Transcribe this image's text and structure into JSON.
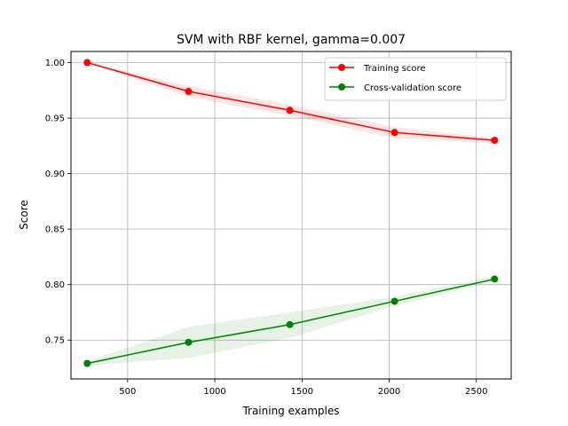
{
  "chart_data": {
    "type": "line",
    "title": "SVM with RBF kernel, gamma=0.007",
    "xlabel": "Training examples",
    "ylabel": "Score",
    "xlim": [
      175,
      2700
    ],
    "ylim": [
      0.715,
      1.01
    ],
    "x_ticks": [
      500,
      1000,
      1500,
      2000,
      2500
    ],
    "x_tick_labels": [
      "500",
      "1000",
      "1500",
      "2000",
      "2500"
    ],
    "y_ticks": [
      0.75,
      0.8,
      0.85,
      0.9,
      0.95,
      1.0
    ],
    "y_tick_labels": [
      "0.75",
      "0.80",
      "0.85",
      "0.90",
      "0.95",
      "1.00"
    ],
    "grid": true,
    "legend_position": "top-right",
    "x": [
      268,
      849,
      1430,
      2031,
      2605
    ],
    "series": [
      {
        "name": "Training score",
        "color": "#ff0000",
        "band_color": "#ff0000",
        "values": [
          1.0,
          0.974,
          0.957,
          0.937,
          0.93
        ],
        "band_lower": [
          1.0,
          0.969,
          0.952,
          0.932,
          0.927
        ],
        "band_upper": [
          1.0,
          0.979,
          0.962,
          0.942,
          0.932
        ]
      },
      {
        "name": "Cross-validation score",
        "color": "#008000",
        "band_color": "#008000",
        "values": [
          0.729,
          0.748,
          0.764,
          0.785,
          0.805
        ],
        "band_lower": [
          0.727,
          0.734,
          0.752,
          0.781,
          0.803
        ],
        "band_upper": [
          0.731,
          0.762,
          0.775,
          0.789,
          0.808
        ]
      }
    ]
  }
}
